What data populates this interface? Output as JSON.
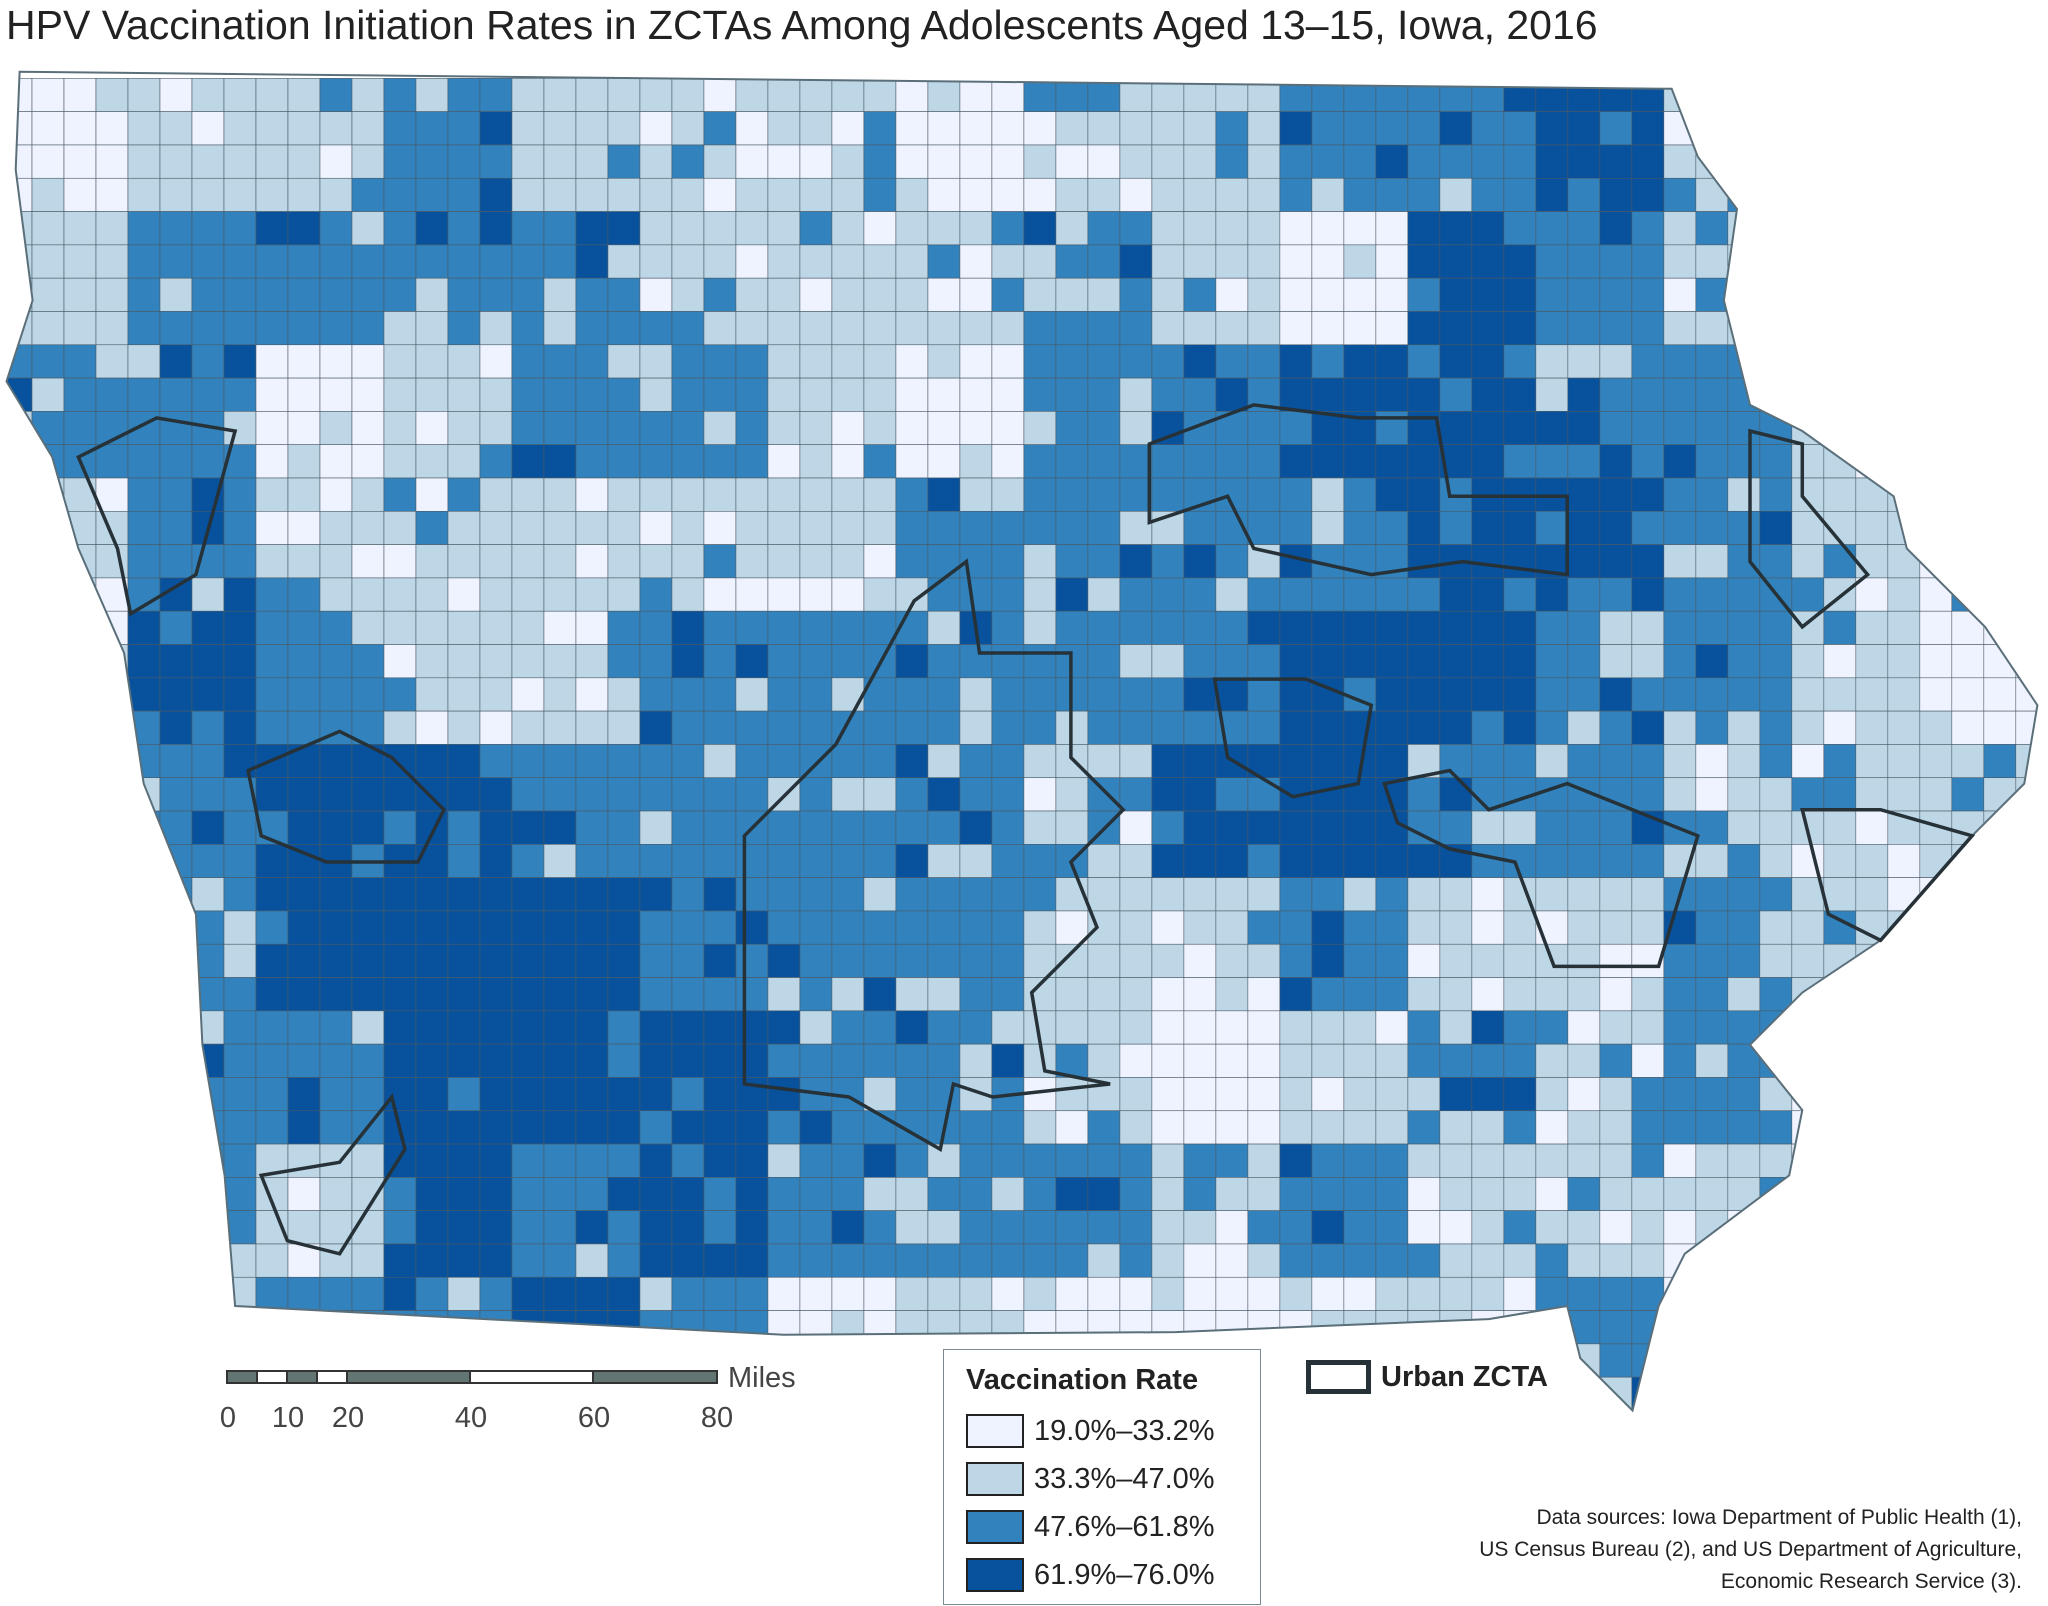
{
  "title": "HPV Vaccination Initiation Rates in ZCTAs Among Adolescents Aged 13–15, Iowa, 2016",
  "chart_data": {
    "type": "choropleth",
    "title": "HPV Vaccination Initiation Rates in ZCTAs Among Adolescents Aged 13–15, Iowa, 2016",
    "region": "Iowa",
    "unit": "ZCTA",
    "classes": [
      {
        "label": "19.0%–33.2%",
        "min": 19.0,
        "max": 33.2,
        "color": "#eff3ff"
      },
      {
        "label": "33.3%–47.0%",
        "min": 33.3,
        "max": 47.0,
        "color": "#bdd7e7"
      },
      {
        "label": "47.6%–61.8%",
        "min": 47.6,
        "max": 61.8,
        "color": "#3182bd"
      },
      {
        "label": "61.9%–76.0%",
        "min": 61.9,
        "max": 76.0,
        "color": "#08519c"
      }
    ],
    "approx_class_grid_west_to_east_north_to_south": [
      [
        0,
        1,
        1,
        2,
        1,
        1,
        1,
        0,
        1,
        1,
        2,
        2,
        3,
        1,
        0,
        0
      ],
      [
        1,
        2,
        2,
        2,
        2,
        1,
        1,
        1,
        2,
        1,
        0,
        3,
        2,
        1,
        0,
        0
      ],
      [
        2,
        2,
        0,
        1,
        2,
        2,
        1,
        0,
        2,
        2,
        3,
        3,
        2,
        2,
        1,
        0
      ],
      [
        1,
        2,
        1,
        1,
        1,
        1,
        1,
        2,
        2,
        2,
        2,
        3,
        3,
        2,
        1,
        1
      ],
      [
        0,
        3,
        2,
        1,
        1,
        2,
        2,
        2,
        2,
        2,
        3,
        3,
        2,
        2,
        1,
        0
      ],
      [
        0,
        2,
        3,
        3,
        2,
        2,
        2,
        2,
        1,
        3,
        3,
        2,
        2,
        1,
        1,
        1
      ],
      [
        0,
        2,
        3,
        3,
        3,
        2,
        2,
        2,
        1,
        1,
        2,
        1,
        1,
        2,
        1,
        0
      ],
      [
        0,
        2,
        2,
        3,
        3,
        3,
        2,
        2,
        1,
        0,
        1,
        2,
        1,
        2,
        0,
        0
      ],
      [
        0,
        2,
        1,
        3,
        2,
        3,
        2,
        2,
        2,
        1,
        2,
        1,
        1,
        1,
        0,
        0
      ],
      [
        0,
        2,
        2,
        2,
        3,
        2,
        0,
        1,
        0,
        0,
        1,
        1,
        2,
        0,
        0,
        0
      ]
    ]
  },
  "legend": {
    "title": "Vaccination Rate",
    "items": [
      "19.0%–33.2%",
      "33.3%–47.0%",
      "47.6%–61.8%",
      "61.9%–76.0%"
    ]
  },
  "urban_legend": {
    "label": "Urban ZCTA",
    "outline_color": "#263238"
  },
  "scale_bar": {
    "unit": "Miles",
    "ticks": [
      "0",
      "10",
      "20",
      "40",
      "60",
      "80"
    ],
    "tick_values": [
      0,
      10,
      20,
      40,
      60,
      80
    ]
  },
  "sources": {
    "lines": [
      "Data sources: Iowa Department of Public Health (1),",
      "US Census Bureau (2), and US Department of Agriculture,",
      "Economic Research Service (3)."
    ]
  }
}
